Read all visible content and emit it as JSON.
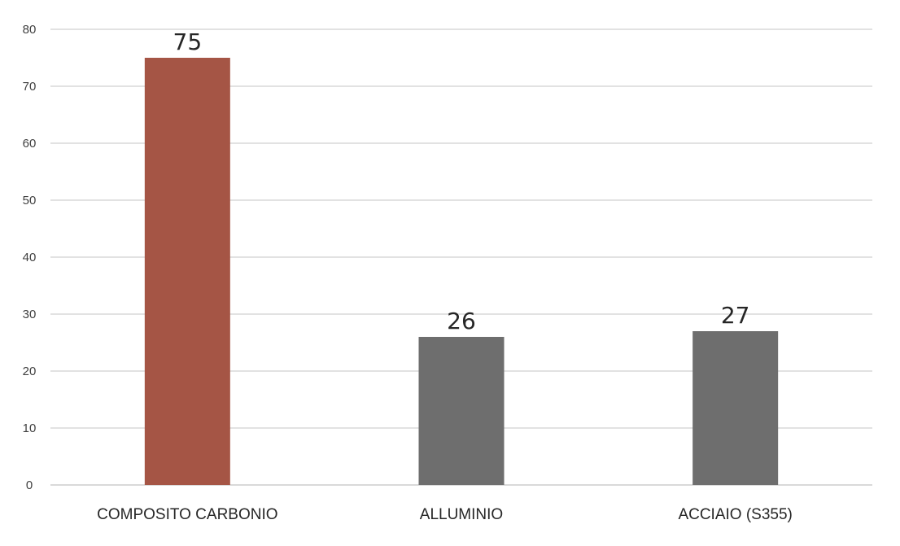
{
  "chart_data": {
    "type": "bar",
    "categories": [
      "COMPOSITO CARBONIO",
      "ALLUMINIO",
      "ACCIAIO (S355)"
    ],
    "values": [
      75,
      26,
      27
    ],
    "data_labels": [
      "75",
      "26",
      "27"
    ],
    "colors": [
      "#a55545",
      "#6e6e6e",
      "#6e6e6e"
    ],
    "ylim": [
      0,
      80
    ],
    "yticks": [
      0,
      10,
      20,
      30,
      40,
      50,
      60,
      70,
      80
    ],
    "grid": true,
    "legend": "none",
    "title": "",
    "xlabel": "",
    "ylabel": ""
  }
}
